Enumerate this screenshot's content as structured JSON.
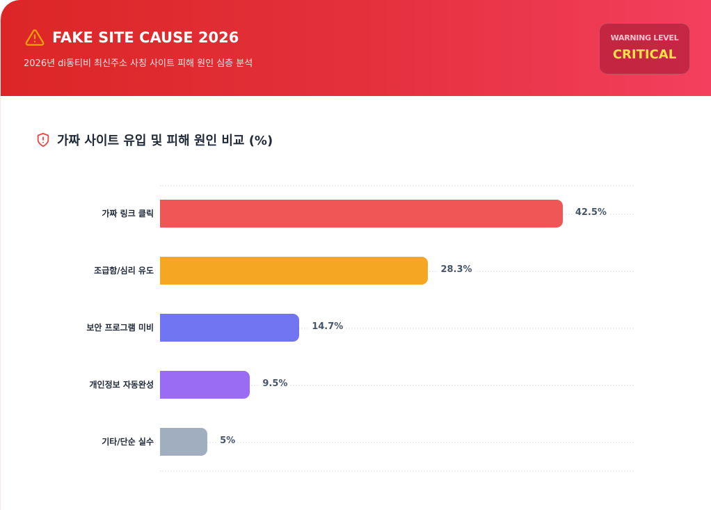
{
  "header": {
    "title": "FAKE SITE CAUSE 2026",
    "subtitle": "2026년 di동티비 최신주소 사칭 사이트 피해 원인 심층 분석",
    "icon": "warning-triangle-icon",
    "badge_label": "WARNING LEVEL",
    "badge_value": "CRITICAL"
  },
  "section": {
    "title": "가짜 사이트 유입 및 피해 원인 비교 (%)",
    "icon": "shield-alert-icon"
  },
  "chart_data": {
    "type": "bar",
    "orientation": "horizontal",
    "title": "가짜 사이트 유입 및 피해 원인 비교 (%)",
    "categories": [
      "가짜 링크 클릭",
      "조급함/심리 유도",
      "보안 프로그램 미비",
      "개인정보 자동완성",
      "기타/단순 실수"
    ],
    "values": [
      42.5,
      28.3,
      14.7,
      9.5,
      5
    ],
    "value_labels": [
      "42.5%",
      "28.3%",
      "14.7%",
      "9.5%",
      "5%"
    ],
    "colors": [
      "#ef5757",
      "#f5a623",
      "#7275f2",
      "#9a6cf4",
      "#a0aec0"
    ],
    "xlabel": "",
    "ylabel": "",
    "xlim": [
      0,
      50
    ],
    "grid": true,
    "legend": false
  }
}
